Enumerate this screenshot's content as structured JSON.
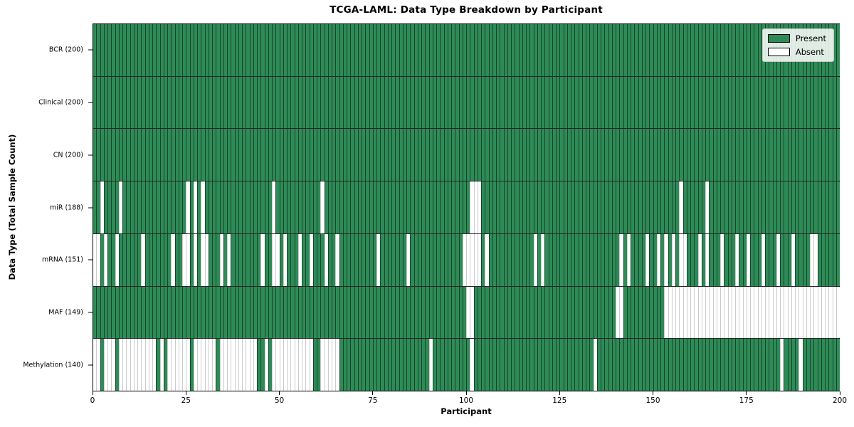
{
  "title": "TCGA-LAML: Data Type Breakdown by Participant",
  "xlabel": "Participant",
  "ylabel": "Data Type (Total Sample Count)",
  "legend": {
    "present_label": "Present",
    "absent_label": "Absent",
    "position": "upper right"
  },
  "colors": {
    "present": "#2e8b57",
    "absent": "#ffffff"
  },
  "chart_data": {
    "type": "heatmap",
    "x_ticks": [
      0,
      25,
      50,
      75,
      100,
      125,
      150,
      175,
      200
    ],
    "n_participants": 200,
    "x_range": [
      0,
      200
    ],
    "grid": false,
    "rows": [
      {
        "name": "bcr",
        "label": "BCR (200)",
        "total": 200,
        "absent": []
      },
      {
        "name": "clinical",
        "label": "Clinical (200)",
        "total": 200,
        "absent": []
      },
      {
        "name": "cn",
        "label": "CN (200)",
        "total": 200,
        "absent": []
      },
      {
        "name": "mir",
        "label": "miR (188)",
        "total": 188,
        "absent": [
          2,
          7,
          25,
          27,
          29,
          48,
          61,
          101,
          102,
          103,
          157,
          164
        ]
      },
      {
        "name": "mrna",
        "label": "mRNA (151)",
        "total": 151,
        "absent": [
          0,
          1,
          3,
          6,
          13,
          21,
          24,
          25,
          27,
          29,
          30,
          34,
          36,
          45,
          48,
          49,
          51,
          55,
          58,
          62,
          65,
          76,
          84,
          99,
          100,
          101,
          102,
          103,
          105,
          118,
          120,
          141,
          143,
          148,
          151,
          153,
          155,
          157,
          158,
          162,
          164,
          168,
          172,
          175,
          179,
          183,
          187,
          192,
          193
        ]
      },
      {
        "name": "maf",
        "label": "MAF (149)",
        "total": 149,
        "absent": [
          100,
          101,
          140,
          141,
          153,
          154,
          155,
          156,
          157,
          158,
          159,
          160,
          161,
          162,
          163,
          164,
          165,
          166,
          167,
          168,
          169,
          170,
          171,
          172,
          173,
          174,
          175,
          176,
          177,
          178,
          179,
          180,
          181,
          182,
          183,
          184,
          185,
          186,
          187,
          188,
          189,
          190,
          191,
          192,
          193,
          194,
          195,
          196,
          197,
          198,
          199
        ]
      },
      {
        "name": "methylation",
        "label": "Methylation (140)",
        "total": 140,
        "absent": [
          0,
          1,
          3,
          4,
          5,
          7,
          8,
          9,
          10,
          11,
          12,
          13,
          14,
          15,
          16,
          18,
          20,
          21,
          22,
          23,
          24,
          25,
          27,
          28,
          29,
          30,
          31,
          32,
          34,
          35,
          36,
          37,
          38,
          39,
          40,
          41,
          42,
          43,
          46,
          48,
          49,
          50,
          51,
          52,
          53,
          54,
          55,
          56,
          57,
          58,
          61,
          62,
          63,
          64,
          65,
          90,
          101,
          134,
          184,
          189
        ]
      }
    ]
  }
}
